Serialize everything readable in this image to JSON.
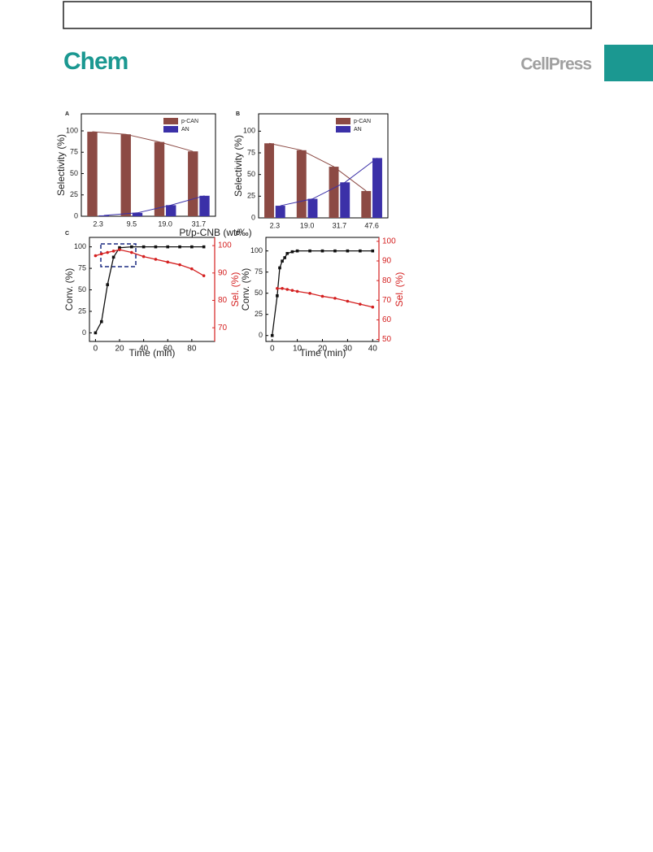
{
  "header": {
    "journal": "Chem",
    "publisher": "CellPress"
  },
  "chart_data": [
    {
      "type": "bar",
      "panel": "A",
      "x_label": "Pt/p-CNB (wt/‰)",
      "y_label": "Selectivity (%)",
      "categories": [
        "2.3",
        "9.5",
        "19.0",
        "31.7"
      ],
      "series": [
        {
          "name": "p-CAN",
          "color": "#8c4a44",
          "values": [
            99,
            96,
            87,
            76
          ]
        },
        {
          "name": "AN",
          "color": "#3b30a8",
          "values": [
            1,
            4,
            13,
            24
          ]
        }
      ],
      "ylim": [
        0,
        120
      ],
      "yticks": [
        0,
        25,
        50,
        75,
        100
      ],
      "trend_lines": true,
      "legend": "top-right"
    },
    {
      "type": "bar",
      "panel": "B",
      "y_label": "Selectivity (%)",
      "categories": [
        "2.3",
        "19.0",
        "31.7",
        "47.6"
      ],
      "series": [
        {
          "name": "p-CAN",
          "color": "#8c4a44",
          "values": [
            86,
            78,
            59,
            31
          ]
        },
        {
          "name": "AN",
          "color": "#3b30a8",
          "values": [
            14,
            22,
            41,
            69
          ]
        }
      ],
      "ylim": [
        0,
        120
      ],
      "yticks": [
        0,
        25,
        50,
        75,
        100
      ],
      "trend_lines": true,
      "legend": "top-right"
    },
    {
      "type": "line",
      "panel": "C",
      "x_label": "Time (min)",
      "y_label": "Conv. (%)",
      "y2_label": "Sel. (%)",
      "series": [
        {
          "color": "#111111",
          "x": [
            0,
            5,
            10,
            15,
            20,
            30,
            40,
            50,
            60,
            70,
            80,
            90
          ],
          "values": [
            0,
            13,
            56,
            88,
            99,
            100,
            100,
            100,
            100,
            100,
            100,
            100
          ]
        },
        {
          "color": "#d42020",
          "axis": "y2",
          "x": [
            0,
            5,
            10,
            15,
            20,
            30,
            40,
            50,
            60,
            70,
            80,
            90
          ],
          "values": [
            96.3,
            97,
            97.5,
            98,
            98.5,
            97.5,
            96,
            95,
            94,
            93,
            91.5,
            89
          ]
        }
      ],
      "xlim": [
        -5,
        99
      ],
      "xticks": [
        0,
        20,
        40,
        60,
        80
      ],
      "ylim": [
        -10,
        111
      ],
      "yticks": [
        0,
        25,
        50,
        75,
        100
      ],
      "y2lim": [
        65,
        103
      ],
      "y2ticks": [
        70,
        80,
        90,
        100
      ]
    },
    {
      "type": "line",
      "panel": "D",
      "x_label": "Time (min)",
      "y_label": "Conv. (%)",
      "y2_label": "Sel. (%)",
      "series": [
        {
          "color": "#111111",
          "x": [
            0,
            2,
            3,
            4,
            5,
            6,
            8,
            10,
            15,
            20,
            25,
            30,
            35,
            40
          ],
          "values": [
            0,
            47,
            80,
            88,
            92,
            97,
            99,
            100,
            100,
            100,
            100,
            100,
            100,
            100
          ]
        },
        {
          "color": "#d42020",
          "axis": "y2",
          "x": [
            2,
            4,
            6,
            8,
            10,
            15,
            20,
            25,
            30,
            35,
            40
          ],
          "values": [
            76,
            76,
            75.5,
            75,
            74.5,
            73.5,
            72,
            71,
            69.5,
            68,
            66.5
          ]
        }
      ],
      "xlim": [
        -2.5,
        42.5
      ],
      "xticks": [
        0,
        10,
        20,
        30,
        40
      ],
      "ylim": [
        -7,
        116
      ],
      "yticks": [
        0,
        25,
        50,
        75,
        100
      ],
      "y2lim": [
        49,
        102
      ],
      "y2ticks": [
        50,
        60,
        70,
        80,
        90,
        100
      ]
    }
  ]
}
